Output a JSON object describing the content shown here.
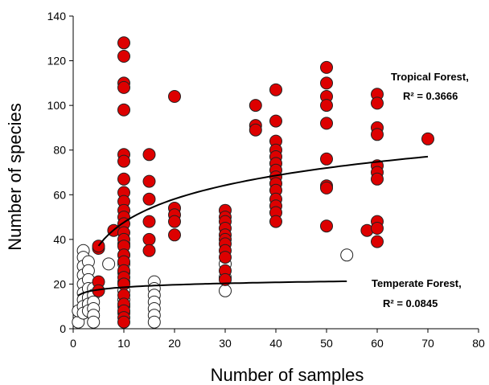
{
  "chart_data": {
    "type": "scatter",
    "xlabel": "Number of samples",
    "ylabel": "Number of species",
    "xlim": [
      0,
      80
    ],
    "ylim": [
      0,
      140
    ],
    "x_ticks": [
      "0",
      "10",
      "20",
      "30",
      "40",
      "50",
      "60",
      "70",
      "80"
    ],
    "y_ticks": [
      "0",
      "20",
      "40",
      "60",
      "80",
      "100",
      "120",
      "140"
    ],
    "grid": false,
    "colors": {
      "tropical": "#dd0000",
      "temperate": "#ffffff",
      "marker_edge": "#222222",
      "trend": "#000000"
    },
    "series": [
      {
        "name": "Tropical Forest",
        "color": "#dd0000",
        "points": [
          [
            5,
            36
          ],
          [
            5,
            37
          ],
          [
            5,
            21
          ],
          [
            5,
            17
          ],
          [
            8,
            44
          ],
          [
            10,
            128
          ],
          [
            10,
            122
          ],
          [
            10,
            110
          ],
          [
            10,
            108
          ],
          [
            10,
            98
          ],
          [
            10,
            78
          ],
          [
            10,
            75
          ],
          [
            10,
            67
          ],
          [
            10,
            61
          ],
          [
            10,
            57
          ],
          [
            10,
            53
          ],
          [
            10,
            50
          ],
          [
            10,
            47
          ],
          [
            10,
            43
          ],
          [
            10,
            40
          ],
          [
            10,
            37
          ],
          [
            10,
            33
          ],
          [
            10,
            30
          ],
          [
            10,
            26
          ],
          [
            10,
            23
          ],
          [
            10,
            20
          ],
          [
            10,
            15
          ],
          [
            10,
            11
          ],
          [
            10,
            8
          ],
          [
            10,
            5
          ],
          [
            10,
            3
          ],
          [
            15,
            78
          ],
          [
            15,
            66
          ],
          [
            15,
            58
          ],
          [
            15,
            48
          ],
          [
            15,
            40
          ],
          [
            15,
            35
          ],
          [
            20,
            104
          ],
          [
            20,
            54
          ],
          [
            20,
            51
          ],
          [
            20,
            48
          ],
          [
            20,
            42
          ],
          [
            30,
            53
          ],
          [
            30,
            50
          ],
          [
            30,
            48
          ],
          [
            30,
            45
          ],
          [
            30,
            42
          ],
          [
            30,
            40
          ],
          [
            30,
            38
          ],
          [
            30,
            35
          ],
          [
            30,
            32
          ],
          [
            30,
            26
          ],
          [
            30,
            22
          ],
          [
            36,
            100
          ],
          [
            36,
            91
          ],
          [
            36,
            89
          ],
          [
            40,
            107
          ],
          [
            40,
            93
          ],
          [
            40,
            84
          ],
          [
            40,
            80
          ],
          [
            40,
            77
          ],
          [
            40,
            74
          ],
          [
            40,
            71
          ],
          [
            40,
            68
          ],
          [
            40,
            65
          ],
          [
            40,
            62
          ],
          [
            40,
            58
          ],
          [
            40,
            55
          ],
          [
            40,
            52
          ],
          [
            40,
            48
          ],
          [
            50,
            117
          ],
          [
            50,
            110
          ],
          [
            50,
            104
          ],
          [
            50,
            100
          ],
          [
            50,
            92
          ],
          [
            50,
            76
          ],
          [
            50,
            64
          ],
          [
            50,
            63
          ],
          [
            50,
            46
          ],
          [
            58,
            44
          ],
          [
            60,
            105
          ],
          [
            60,
            101
          ],
          [
            60,
            90
          ],
          [
            60,
            87
          ],
          [
            60,
            73
          ],
          [
            60,
            70
          ],
          [
            60,
            67
          ],
          [
            60,
            48
          ],
          [
            60,
            45
          ],
          [
            60,
            39
          ],
          [
            70,
            85
          ]
        ]
      },
      {
        "name": "Temperate Forest",
        "color": "#ffffff",
        "points": [
          [
            1,
            3
          ],
          [
            1,
            8
          ],
          [
            2,
            35
          ],
          [
            2,
            32
          ],
          [
            2,
            28
          ],
          [
            2,
            24
          ],
          [
            2,
            20
          ],
          [
            2,
            16
          ],
          [
            2,
            13
          ],
          [
            2,
            10
          ],
          [
            2,
            7
          ],
          [
            3,
            30
          ],
          [
            3,
            26
          ],
          [
            3,
            22
          ],
          [
            3,
            18
          ],
          [
            3,
            14
          ],
          [
            3,
            11
          ],
          [
            3,
            8
          ],
          [
            4,
            18
          ],
          [
            4,
            15
          ],
          [
            4,
            12
          ],
          [
            4,
            9
          ],
          [
            4,
            6
          ],
          [
            4,
            3
          ],
          [
            7,
            29
          ],
          [
            10,
            38
          ],
          [
            10,
            33
          ],
          [
            10,
            29
          ],
          [
            10,
            25
          ],
          [
            10,
            21
          ],
          [
            10,
            17
          ],
          [
            10,
            13
          ],
          [
            10,
            10
          ],
          [
            10,
            7
          ],
          [
            16,
            21
          ],
          [
            16,
            18
          ],
          [
            16,
            15
          ],
          [
            16,
            12
          ],
          [
            16,
            9
          ],
          [
            16,
            6
          ],
          [
            16,
            3
          ],
          [
            30,
            29
          ],
          [
            30,
            23
          ],
          [
            30,
            17
          ],
          [
            54,
            33
          ]
        ]
      }
    ],
    "trendlines": [
      {
        "series": "Tropical Forest",
        "x_range": [
          5,
          70
        ],
        "label_line1": "Tropical Forest,",
        "label_line2": "R² = 0.3666"
      },
      {
        "series": "Temperate Forest",
        "x_range": [
          1,
          54
        ],
        "label_line1": "Temperate Forest,",
        "label_line2": "R² = 0.0845"
      }
    ]
  }
}
